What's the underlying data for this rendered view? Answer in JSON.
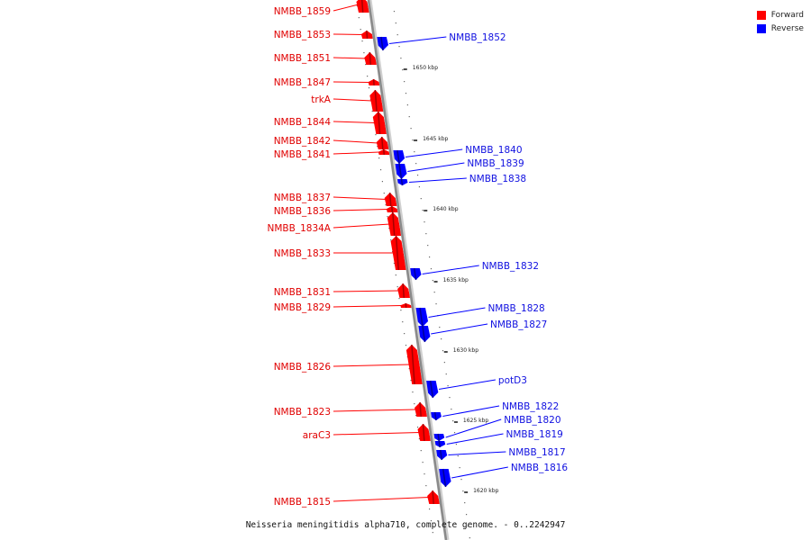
{
  "legend": [
    {
      "label": "Forward",
      "color": "#ff0000"
    },
    {
      "label": "Reverse",
      "color": "#0000ff"
    }
  ],
  "caption": "Neisseria meningitidis alpha710, complete genome. - 0..2242947",
  "chart_data": {
    "type": "genome-map",
    "forward_color": "#ff0000",
    "reverse_color": "#0000ff",
    "forward_genes": [
      "NMBB_1859",
      "NMBB_1853",
      "NMBB_1851",
      "NMBB_1847",
      "trkA",
      "NMBB_1844",
      "NMBB_1842",
      "NMBB_1841",
      "NMBB_1837",
      "NMBB_1836",
      "NMBB_1834A",
      "NMBB_1833",
      "NMBB_1831",
      "NMBB_1829",
      "NMBB_1826",
      "NMBB_1823",
      "araC3",
      "NMBB_1815"
    ],
    "reverse_genes": [
      "NMBB_1852",
      "NMBB_1840",
      "NMBB_1839",
      "NMBB_1838",
      "NMBB_1832",
      "NMBB_1828",
      "NMBB_1827",
      "potD3",
      "NMBB_1822",
      "NMBB_1820",
      "NMBB_1819",
      "NMBB_1817",
      "NMBB_1816"
    ],
    "scale_ticks": [
      "1650 kbp",
      "1645 kbp",
      "1640 kbp",
      "1635 kbp",
      "1630 kbp",
      "1625 kbp",
      "1620 kbp"
    ]
  }
}
